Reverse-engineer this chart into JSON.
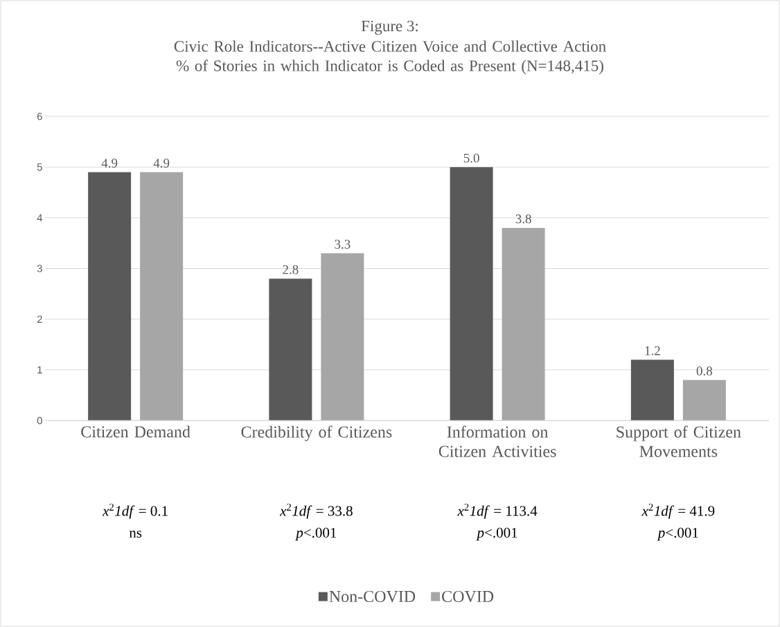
{
  "chart_data": {
    "type": "bar",
    "title": "Figure 3:",
    "subtitle": "Civic Role Indicators--Active Citizen Voice and Collective Action % of Stories in which Indicator is Coded as Present (N=148,415)",
    "categories": [
      "Citizen Demand",
      "Credibility of Citizens",
      "Information on Citizen Activities",
      "Support of Citizen Movements"
    ],
    "series": [
      {
        "name": "Non-COVID",
        "color": "#595959",
        "values": [
          4.9,
          2.8,
          5.0,
          1.2
        ],
        "value_labels": [
          "4.9",
          "2.8",
          "5.0",
          "1.2"
        ]
      },
      {
        "name": "COVID",
        "color": "#a6a6a6",
        "values": [
          4.9,
          3.3,
          3.8,
          0.8
        ],
        "value_labels": [
          "4.9",
          "3.3",
          "3.8",
          "0.8"
        ]
      }
    ],
    "ylim": [
      0,
      6
    ],
    "yticks": [
      0,
      1,
      2,
      3,
      4,
      5,
      6
    ],
    "grid": "y",
    "legend": "bottom",
    "annotations": [
      "*x*$^{2}$*1df* = 0.1",
      "*x*$^{2}$*1df* = 33.8",
      "*x*$^{2}$*1df* = 113.4",
      "*x*$^{2}$*1df* = 41.9",
      "ns",
      "*p*<.001",
      "*p*<.001",
      "*p*<.001"
    ]
  }
}
